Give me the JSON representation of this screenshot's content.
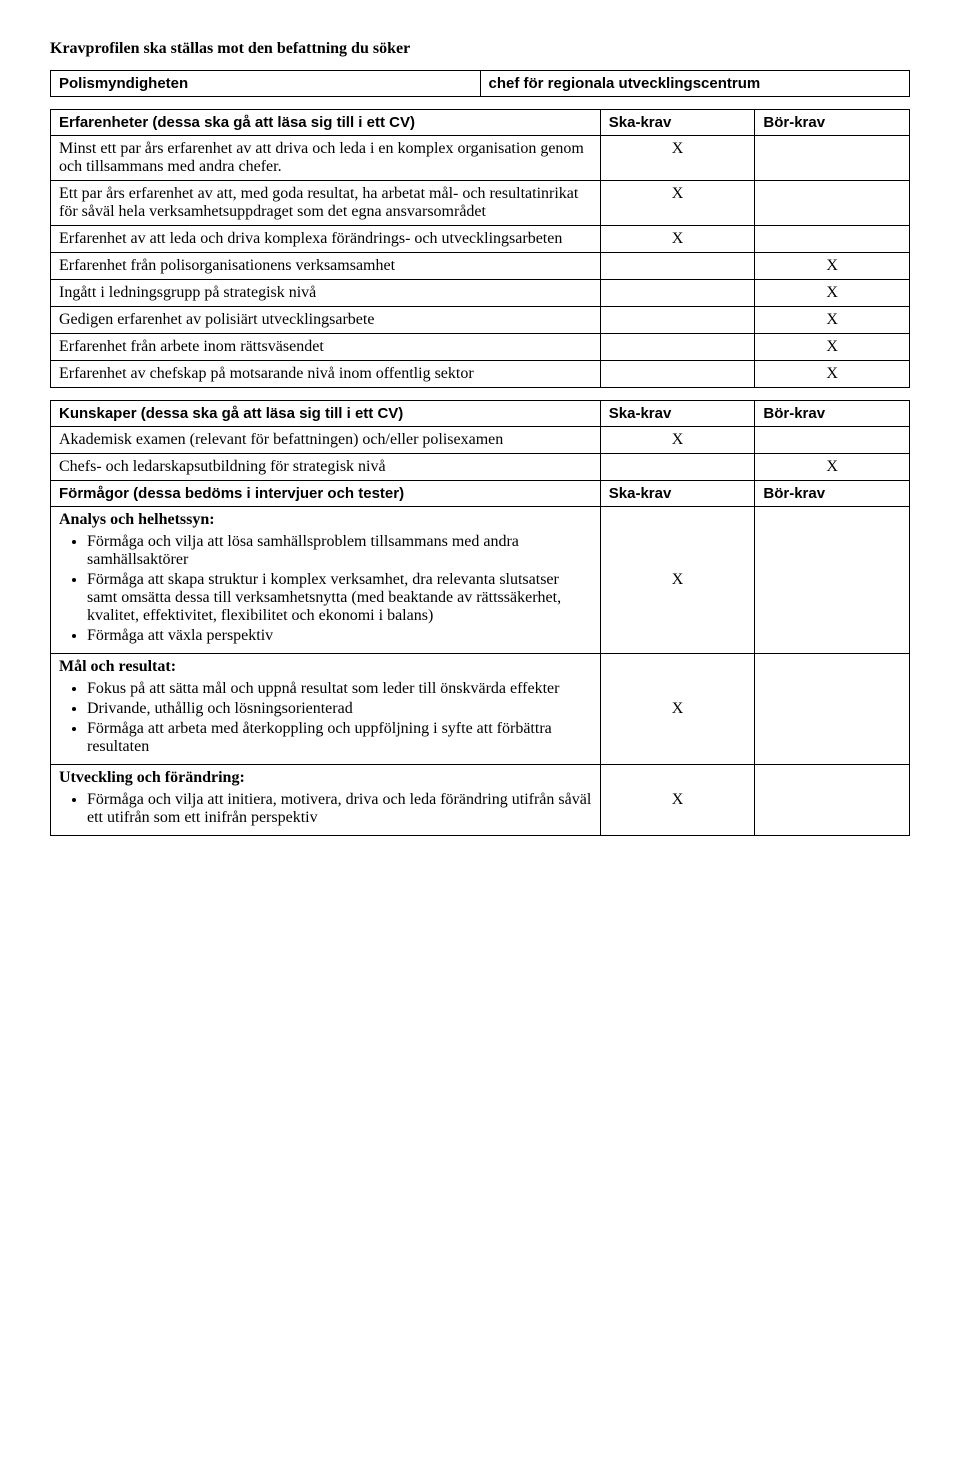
{
  "heading": "Kravprofilen ska ställas mot den befattning du söker",
  "info": {
    "left": "Polismyndigheten",
    "right": "chef för regionala utvecklingscentrum"
  },
  "sections": {
    "erfarenheter": {
      "header": "Erfarenheter (dessa ska gå att läsa sig till i ett CV)",
      "ska": "Ska-krav",
      "bor": "Bör-krav",
      "rows": [
        {
          "label": "Minst ett par års erfarenhet av att driva och leda i en komplex organisation genom och tillsammans med andra chefer.",
          "ska": "X",
          "bor": ""
        },
        {
          "label": "Ett par års erfarenhet av att, med goda resultat, ha arbetat mål- och resultatinrikat för såväl hela verksamhetsuppdraget som det egna ansvarsområdet",
          "ska": "X",
          "bor": ""
        },
        {
          "label": "Erfarenhet av att leda och driva komplexa förändrings- och utvecklingsarbeten",
          "ska": "X",
          "bor": ""
        },
        {
          "label": "Erfarenhet från polisorganisationens verksamsamhet",
          "ska": "",
          "bor": "X"
        },
        {
          "label": "Ingått i ledningsgrupp på strategisk nivå",
          "ska": "",
          "bor": "X"
        },
        {
          "label": "Gedigen erfarenhet av polisiärt utvecklingsarbete",
          "ska": "",
          "bor": "X"
        },
        {
          "label": "Erfarenhet från arbete inom rättsväsendet",
          "ska": "",
          "bor": "X"
        },
        {
          "label": "Erfarenhet av chefskap på motsarande nivå inom offentlig sektor",
          "ska": "",
          "bor": "X"
        }
      ]
    },
    "kunskaper": {
      "header": "Kunskaper (dessa ska gå att läsa sig till i ett CV)",
      "ska": "Ska-krav",
      "bor": "Bör-krav",
      "rows": [
        {
          "label": "Akademisk examen  (relevant för befattningen) och/eller polisexamen",
          "ska": "X",
          "bor": ""
        },
        {
          "label": "Chefs- och ledarskapsutbildning för strategisk nivå",
          "ska": "",
          "bor": "X"
        }
      ]
    },
    "formagor": {
      "header": "Förmågor (dessa bedöms i intervjuer och tester)",
      "ska": "Ska-krav",
      "bor": "Bör-krav",
      "groups": [
        {
          "title": "Analys och helhetssyn:",
          "bullets": [
            "Förmåga och vilja att lösa samhällsproblem tillsammans med andra samhällsaktörer",
            "Förmåga att skapa struktur i komplex verksamhet, dra relevanta slutsatser samt omsätta dessa till verksamhetsnytta (med beaktande av rättssäkerhet, kvalitet, effektivitet, flexibilitet och ekonomi i balans)",
            "Förmåga att växla perspektiv"
          ],
          "ska": "X",
          "bor": ""
        },
        {
          "title": "Mål och resultat:",
          "bullets": [
            "Fokus på att sätta mål och uppnå resultat som leder till önskvärda effekter",
            "Drivande, uthållig och lösningsorienterad",
            "Förmåga att arbeta med återkoppling och uppföljning  i syfte att förbättra resultaten"
          ],
          "ska": "X",
          "bor": ""
        },
        {
          "title": "Utveckling och förändring:",
          "bullets": [
            "Förmåga och vilja att initiera, motivera, driva och leda förändring utifrån såväl ett utifrån som ett inifrån perspektiv"
          ],
          "ska": "X",
          "bor": ""
        }
      ]
    }
  }
}
